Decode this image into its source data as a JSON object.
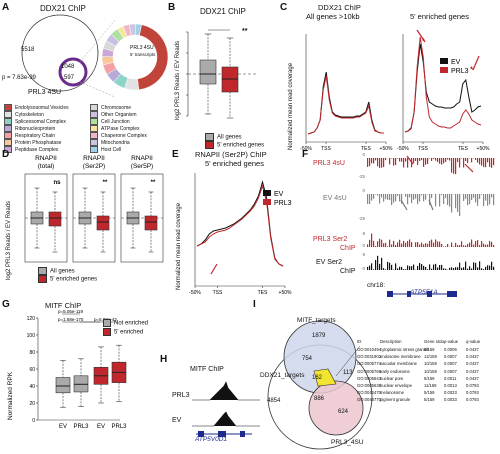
{
  "panels": {
    "A": {
      "letter": "A",
      "title": "DDX21 ChIP",
      "count_chip_only": "5518",
      "count_overlap": "1048",
      "count_4su_only": "597",
      "pvalue": "p = 7.63e-99",
      "set2_label": "PRL3 4SU",
      "pie_label_1": "PRL3 4SU",
      "pie_label_2": "5' transcripts",
      "legend_left": [
        "Endolysosomal Vesicles",
        "Cytoskeleton",
        "Spliceosomal Complex",
        "Ribonucleoprotein",
        "Respiratory Chain",
        "Protein Phosphatase",
        "Peptidase Complex"
      ],
      "legend_right": [
        "Chromosome",
        "Other Organism",
        "Cell Junction",
        "ATPase Complex",
        "Chaperone Complex",
        "Mitochondria",
        "Host Cell"
      ],
      "legend_colors_left": [
        "#c0443a",
        "#e2e2e2",
        "#8dd3c7",
        "#b8a9d9",
        "#f4a0a4",
        "#f6c79a",
        "#c9a7d6"
      ],
      "legend_colors_right": [
        "#d8d8d8",
        "#cbbfe3",
        "#aee0a0",
        "#f7e69a",
        "#f2b4c8",
        "#ccc5e0",
        "#9fd1ea"
      ],
      "pie_values": [
        45,
        7,
        6,
        5,
        5,
        4,
        4,
        4,
        4,
        4,
        3,
        3,
        3,
        3
      ]
    },
    "B": {
      "letter": "B",
      "title": "DDX21 ChIP",
      "ylabel": "log2 PRL3 Reads / EV Reads",
      "sig": "**",
      "legend": [
        "All genes",
        "5' enriched genes"
      ]
    },
    "C": {
      "letter": "C",
      "title_left_1": "DDX21 ChIP",
      "title_left_2": "All genes >10kb",
      "title_right": "5' enriched genes",
      "ylabel": "Normalized mean read coverage",
      "xticks": [
        "-50%",
        "TSS",
        "TES",
        "+50%"
      ],
      "legend": [
        "EV",
        "PRL3"
      ]
    },
    "D": {
      "letter": "D",
      "ylabel": "log2 PRL3 Reads / EV Reads",
      "groups": [
        {
          "line1": "RNAPII",
          "line2": "(total)",
          "sig": "ns"
        },
        {
          "line1": "RNAPII",
          "line2": "(Ser2P)",
          "sig": "**"
        },
        {
          "line1": "RNAPII",
          "line2": "(Ser5P)",
          "sig": "**"
        }
      ],
      "legend": [
        "All genes",
        "5' enriched genes"
      ]
    },
    "E": {
      "letter": "E",
      "title_1": "RNAPII (Ser2P) ChIP",
      "title_2": "5' enriched genes",
      "ylabel": "Normalized mean read coverage",
      "xticks": [
        "-50%",
        "TSS",
        "TES",
        "+50%"
      ],
      "legend": [
        "EV",
        "PRL3"
      ]
    },
    "F": {
      "letter": "F",
      "tracks": [
        {
          "label": "PRL3 4sU",
          "color": "red",
          "scale_top": "0",
          "scale_bottom": "-25"
        },
        {
          "label": "EV 4sU",
          "color": "gray",
          "scale_top": "0",
          "scale_bottom": "-25"
        },
        {
          "label": "PRL3 Ser2 ChIP",
          "color": "red",
          "scale_top": "9",
          "scale_bottom": "0"
        },
        {
          "label": "EV Ser2 ChIP",
          "color": "black",
          "scale_top": "9",
          "scale_bottom": "0"
        }
      ],
      "chrom": "chr18:",
      "gene": "ATP5F1A"
    },
    "G": {
      "letter": "G",
      "title": "MITF ChIP",
      "ylabel": "Normalized RPK",
      "yticks": [
        "0",
        "20",
        "40",
        "60",
        "80",
        "100",
        "120"
      ],
      "xticks": [
        "EV",
        "PRL3",
        "EV",
        "PRL3"
      ],
      "pvals": [
        "p=5.05e-119",
        "p=1.68e-170",
        "p=5.98e-42"
      ],
      "legend": [
        "Not enriched",
        "5' enriched"
      ]
    },
    "H": {
      "letter": "H",
      "title": "MITF ChIP",
      "tracks": [
        "PRL3",
        "EV"
      ],
      "gene": "ATP5V0D1"
    },
    "I": {
      "letter": "I",
      "set_labels": [
        "MITF_targets",
        "DDX21_targets",
        "PRL3_4SU"
      ],
      "counts": {
        "mitf_only": "1879",
        "ddx_only": "4854",
        "prl_only": "624",
        "mitf_ddx": "754",
        "center": "162",
        "mitf_prl": "113",
        "ddx_prl": "886"
      },
      "table_headers": [
        "ID",
        "Description",
        "Gene ratio",
        "p-value",
        "q-value"
      ],
      "table_rows": [
        [
          "GO:0010494",
          "cytoplasmic stress granule",
          "5/159",
          "0.0006",
          "0.0437"
        ],
        [
          "GO:0031902",
          "endosome membrane",
          "12/159",
          "0.0007",
          "0.0437"
        ],
        [
          "GO:0005774",
          "vacuolar membrane",
          "10/159",
          "0.0007",
          "0.0437"
        ],
        [
          "GO:0005769",
          "early endosome",
          "10/159",
          "0.0007",
          "0.0437"
        ],
        [
          "GO:0005643",
          "nuclear pore",
          "5/159",
          "0.0011",
          "0.0437"
        ],
        [
          "GO:0005635",
          "nuclear envelope",
          "11/159",
          "0.0013",
          "0.0793"
        ],
        [
          "GO:0042470",
          "melanosome",
          "5/159",
          "0.0023",
          "0.0793"
        ],
        [
          "GO:0048770",
          "pigment granule",
          "5/159",
          "0.0033",
          "0.0793"
        ]
      ]
    }
  }
}
